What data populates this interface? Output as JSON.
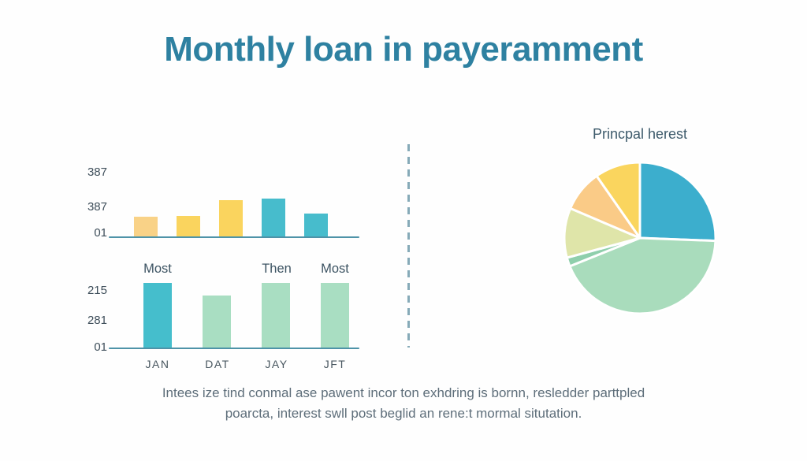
{
  "page": {
    "title": "Monthly loan in payeramment"
  },
  "caption": {
    "line1": "Intees ize tind conmal ase pawent incor ton exhdring is bornn, resledder parttpled",
    "line2": "poarcta, interest swll post beglid an rene:t mormal situtation."
  },
  "colors": {
    "background": "#FEFEFE",
    "title_text": "#2E81A1",
    "axis_line": "#4E93A8",
    "divider": "#86AAB8",
    "tick_text": "#3E4E5A",
    "group_label_text": "#3C5362",
    "x_label_text": "#48565F",
    "caption_text": "#5E6E7A"
  },
  "chart_data": [
    {
      "type": "bar",
      "name": "monthly-payment-top-chart",
      "title": "",
      "y_ticks": [
        "387",
        "387",
        "01"
      ],
      "categories": [
        "",
        "",
        "",
        "",
        ""
      ],
      "values": [
        27,
        28,
        48,
        50,
        31
      ],
      "value_note": "relative bar heights (px); axis tick labels are decorative garbled text",
      "bar_colors": [
        "#F9D287",
        "#FAD45E",
        "#FAD45E",
        "#47BCCC",
        "#47BCCC"
      ],
      "grid": false,
      "legend": false
    },
    {
      "type": "bar",
      "name": "monthly-payment-bottom-chart",
      "title": "",
      "y_ticks": [
        "215",
        "281",
        "01"
      ],
      "x_labels": [
        "JAN",
        "DAT",
        "JAY",
        "JFT"
      ],
      "group_labels": [
        "Most",
        "Then",
        "Most"
      ],
      "group_label_columns": [
        0,
        2,
        3
      ],
      "values": [
        82,
        66,
        82,
        82
      ],
      "value_note": "relative bar heights (px); axis tick labels are decorative garbled text",
      "bar_colors": [
        "#45BECC",
        "#A9DEC2",
        "#A9DEC2",
        "#A9DEC2"
      ],
      "grid": false,
      "legend": false
    },
    {
      "type": "pie",
      "name": "principal-interest-pie",
      "title": "Princpal herest",
      "slices": [
        {
          "label": "teal",
          "percent": 25.6,
          "color": "#3CAECD"
        },
        {
          "label": "green-large",
          "percent": 43.3,
          "color": "#A9DCBC"
        },
        {
          "label": "green-sliver",
          "percent": 1.9,
          "color": "#8FCFAC"
        },
        {
          "label": "khaki",
          "percent": 10.6,
          "color": "#DFE5A9"
        },
        {
          "label": "peach",
          "percent": 8.9,
          "color": "#FACB87"
        },
        {
          "label": "yellow",
          "percent": 9.7,
          "color": "#FAD55E"
        }
      ],
      "start_angle_deg": 0,
      "legend": false
    }
  ]
}
